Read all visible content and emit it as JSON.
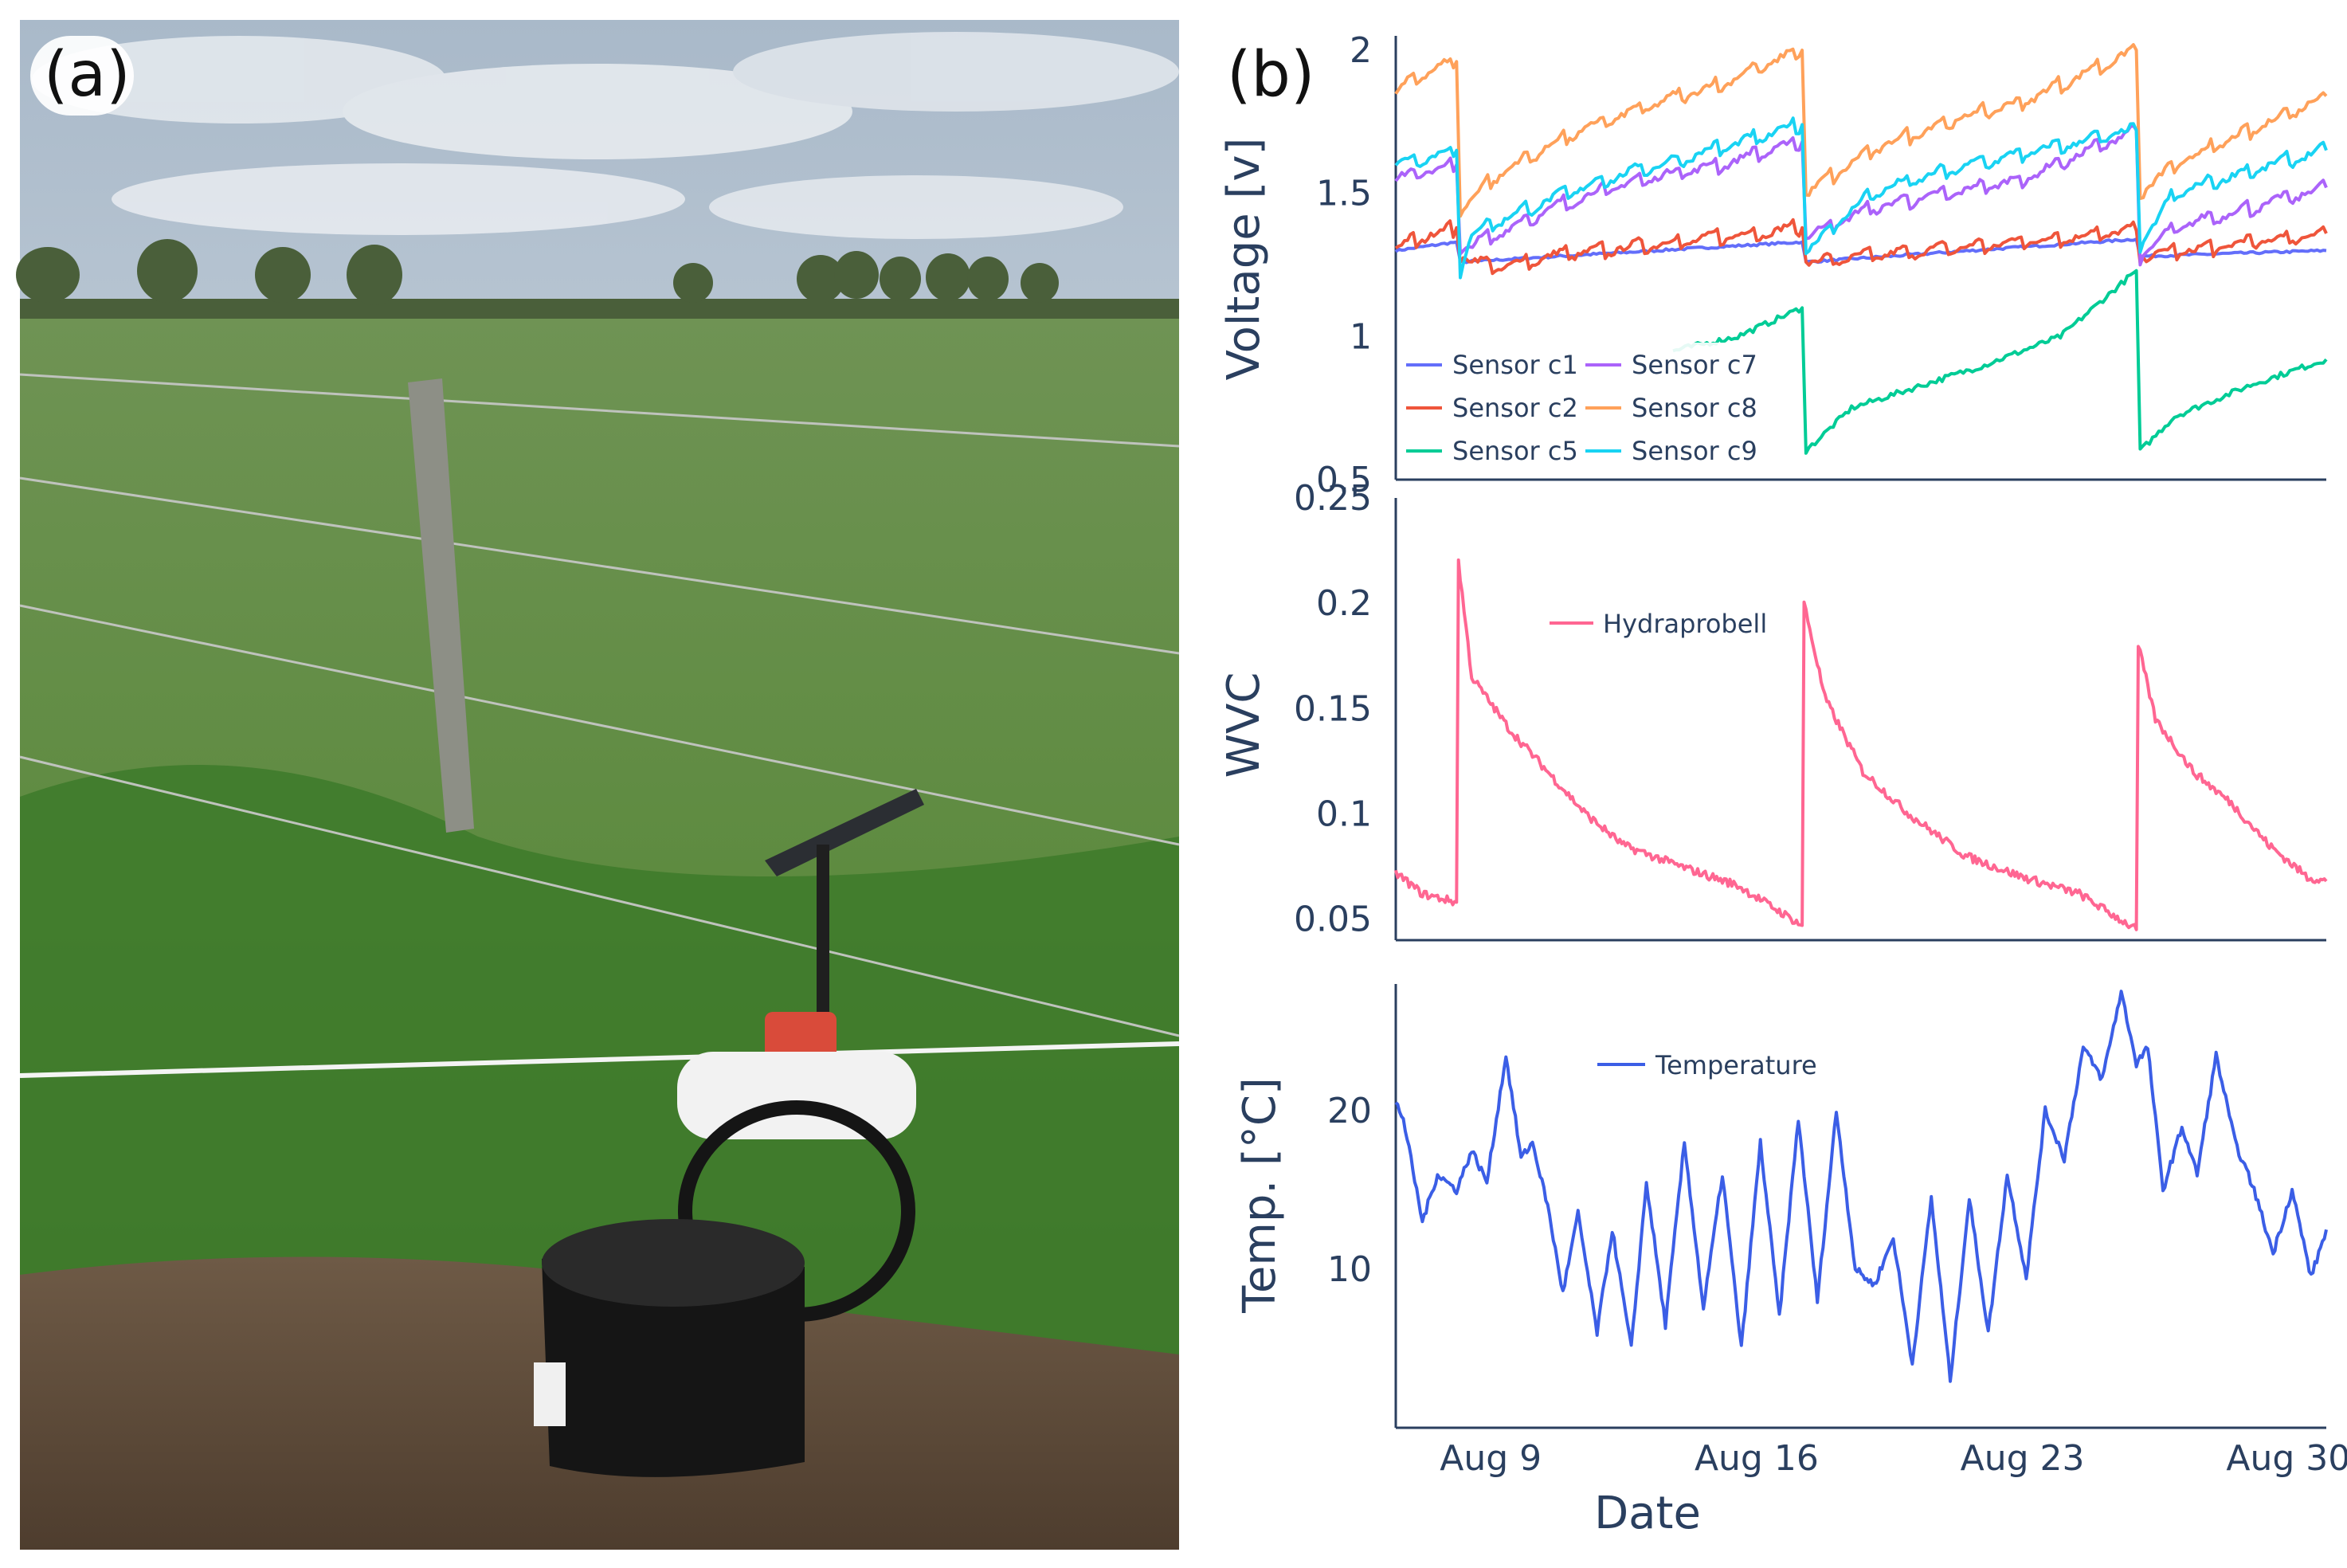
{
  "panel_labels": {
    "a": "(a)",
    "b": "(b)"
  },
  "colors": {
    "c1": "#636efa",
    "c2": "#ef553b",
    "c5": "#00cc96",
    "c7": "#ab63fa",
    "c8": "#ffa15a",
    "c9": "#19d3f3",
    "hydra": "#ff6692",
    "temp": "#3b5ee6",
    "axis": "#2a3f5f"
  },
  "photo": {
    "description_icon": "field-sensor-station-photo"
  },
  "chart_data": [
    {
      "type": "line",
      "ylabel": "Voltage [v]",
      "ylim": [
        0.5,
        2.05
      ],
      "yticks": [
        "0.5",
        "1",
        "1.5",
        "2"
      ],
      "ytick_values": [
        0.5,
        1,
        1.5,
        2
      ],
      "xlim_days": [
        6.5,
        31
      ],
      "series": [
        {
          "name": "Sensor c1",
          "color_key": "c1",
          "segments": [
            [
              [
                6.5,
                1.3
              ],
              [
                8.1,
                1.33
              ],
              [
                8.2,
                1.26
              ],
              [
                17.2,
                1.33
              ],
              [
                17.3,
                1.26
              ],
              [
                26.0,
                1.34
              ],
              [
                26.1,
                1.28
              ],
              [
                31,
                1.3
              ]
            ]
          ]
        },
        {
          "name": "Sensor c2",
          "color_key": "c2",
          "segments": [
            [
              [
                6.5,
                1.31
              ],
              [
                7.5,
                1.36
              ],
              [
                8.1,
                1.38
              ],
              [
                8.2,
                1.28
              ],
              [
                9.2,
                1.24
              ],
              [
                10.5,
                1.28
              ],
              [
                17.2,
                1.38
              ],
              [
                17.3,
                1.26
              ],
              [
                26.0,
                1.37
              ],
              [
                26.1,
                1.28
              ],
              [
                31,
                1.36
              ]
            ]
          ]
        },
        {
          "name": "Sensor c5",
          "color_key": "c5",
          "segments": [
            [
              [
                13.8,
                0.95
              ],
              [
                15.5,
                1.0
              ],
              [
                17.2,
                1.1
              ],
              [
                17.3,
                0.6
              ],
              [
                18.5,
                0.75
              ],
              [
                22,
                0.9
              ],
              [
                24,
                1.0
              ],
              [
                26.0,
                1.23
              ],
              [
                26.1,
                0.6
              ],
              [
                27,
                0.72
              ],
              [
                29,
                0.83
              ],
              [
                31,
                0.92
              ]
            ]
          ]
        },
        {
          "name": "Sensor c7",
          "color_key": "c7",
          "segments": [
            [
              [
                6.5,
                1.55
              ],
              [
                8.1,
                1.6
              ],
              [
                8.2,
                1.3
              ],
              [
                9,
                1.35
              ],
              [
                11,
                1.47
              ],
              [
                13,
                1.55
              ],
              [
                15,
                1.6
              ],
              [
                17.2,
                1.68
              ],
              [
                17.3,
                1.35
              ],
              [
                19,
                1.45
              ],
              [
                21,
                1.5
              ],
              [
                23,
                1.55
              ],
              [
                26.0,
                1.72
              ],
              [
                26.1,
                1.28
              ],
              [
                27,
                1.38
              ],
              [
                29,
                1.45
              ],
              [
                31,
                1.52
              ]
            ]
          ]
        },
        {
          "name": "Sensor c8",
          "color_key": "c8",
          "segments": [
            [
              [
                6.5,
                1.85
              ],
              [
                7.2,
                1.92
              ],
              [
                8.1,
                1.96
              ],
              [
                8.2,
                1.44
              ],
              [
                9,
                1.55
              ],
              [
                11,
                1.7
              ],
              [
                13,
                1.8
              ],
              [
                15,
                1.88
              ],
              [
                17.2,
                2.0
              ],
              [
                17.3,
                1.5
              ],
              [
                19,
                1.65
              ],
              [
                21,
                1.75
              ],
              [
                23,
                1.82
              ],
              [
                26.0,
                2.0
              ],
              [
                26.1,
                1.5
              ],
              [
                27,
                1.6
              ],
              [
                29,
                1.72
              ],
              [
                31,
                1.84
              ]
            ]
          ]
        },
        {
          "name": "Sensor c9",
          "color_key": "c9",
          "segments": [
            [
              [
                6.5,
                1.6
              ],
              [
                8.1,
                1.65
              ],
              [
                8.2,
                1.22
              ],
              [
                8.5,
                1.36
              ],
              [
                10,
                1.45
              ],
              [
                12,
                1.55
              ],
              [
                14,
                1.62
              ],
              [
                17.2,
                1.74
              ],
              [
                17.3,
                1.3
              ],
              [
                19,
                1.5
              ],
              [
                21,
                1.58
              ],
              [
                23,
                1.64
              ],
              [
                26.0,
                1.72
              ],
              [
                26.1,
                1.32
              ],
              [
                27,
                1.5
              ],
              [
                29,
                1.58
              ],
              [
                31,
                1.65
              ]
            ]
          ]
        }
      ],
      "legend": {
        "left": [
          "Sensor c1",
          "Sensor c2",
          "Sensor c5"
        ],
        "right": [
          "Sensor c7",
          "Sensor c8",
          "Sensor c9"
        ]
      }
    },
    {
      "type": "line",
      "ylabel": "WVC",
      "ylim": [
        0.04,
        0.25
      ],
      "yticks": [
        "0.05",
        "0.1",
        "0.15",
        "0.2",
        "0.25"
      ],
      "ytick_values": [
        0.05,
        0.1,
        0.15,
        0.2,
        0.25
      ],
      "series": [
        {
          "name": "Hydraprobell",
          "color_key": "hydra",
          "points": [
            [
              6.5,
              0.072
            ],
            [
              7.2,
              0.062
            ],
            [
              8.1,
              0.058
            ],
            [
              8.15,
              0.22
            ],
            [
              8.5,
              0.165
            ],
            [
              9.5,
              0.14
            ],
            [
              10.5,
              0.12
            ],
            [
              11.5,
              0.1
            ],
            [
              12.5,
              0.085
            ],
            [
              14,
              0.075
            ],
            [
              15.5,
              0.066
            ],
            [
              17.2,
              0.047
            ],
            [
              17.25,
              0.2
            ],
            [
              17.8,
              0.155
            ],
            [
              18.8,
              0.12
            ],
            [
              20,
              0.1
            ],
            [
              21.5,
              0.08
            ],
            [
              23,
              0.07
            ],
            [
              24.5,
              0.062
            ],
            [
              26.0,
              0.045
            ],
            [
              26.05,
              0.18
            ],
            [
              26.5,
              0.145
            ],
            [
              27.5,
              0.12
            ],
            [
              28.5,
              0.105
            ],
            [
              29.5,
              0.085
            ],
            [
              30.5,
              0.07
            ],
            [
              31,
              0.068
            ]
          ]
        }
      ]
    },
    {
      "type": "line",
      "xlabel": "Date",
      "ylabel": "Temp. [°C]",
      "ylim": [
        0,
        28
      ],
      "yticks": [
        "10",
        "20"
      ],
      "ytick_values": [
        10,
        20
      ],
      "xticks": [
        "Aug 9",
        "Aug 16",
        "Aug 23",
        "Aug 30"
      ],
      "xtick_days": [
        9,
        16,
        23,
        30
      ],
      "series": [
        {
          "name": "Temperature",
          "color_key": "temp",
          "points": [
            [
              6.5,
              20.5
            ],
            [
              6.7,
              19.5
            ],
            [
              7.2,
              13
            ],
            [
              7.6,
              16
            ],
            [
              8.1,
              15
            ],
            [
              8.5,
              17.5
            ],
            [
              8.9,
              15.5
            ],
            [
              9.4,
              23.5
            ],
            [
              9.8,
              17
            ],
            [
              10.1,
              18
            ],
            [
              10.5,
              14
            ],
            [
              10.9,
              8.5
            ],
            [
              11.3,
              13.5
            ],
            [
              11.8,
              6
            ],
            [
              12.2,
              12.5
            ],
            [
              12.7,
              5
            ],
            [
              13.1,
              15.5
            ],
            [
              13.6,
              6.5
            ],
            [
              14.1,
              18
            ],
            [
              14.6,
              7.5
            ],
            [
              15.1,
              16
            ],
            [
              15.6,
              5
            ],
            [
              16.1,
              18
            ],
            [
              16.6,
              7
            ],
            [
              17.1,
              19.5
            ],
            [
              17.6,
              8
            ],
            [
              18.1,
              20
            ],
            [
              18.6,
              10
            ],
            [
              19.1,
              9
            ],
            [
              19.6,
              12
            ],
            [
              20.1,
              4
            ],
            [
              20.6,
              14.5
            ],
            [
              21.1,
              3
            ],
            [
              21.6,
              14.5
            ],
            [
              22.1,
              6
            ],
            [
              22.6,
              16
            ],
            [
              23.1,
              9.5
            ],
            [
              23.6,
              20
            ],
            [
              24.1,
              17
            ],
            [
              24.6,
              24
            ],
            [
              25.1,
              22
            ],
            [
              25.6,
              27.5
            ],
            [
              26.0,
              23
            ],
            [
              26.3,
              24
            ],
            [
              26.7,
              15
            ],
            [
              27.2,
              19
            ],
            [
              27.6,
              16
            ],
            [
              28.1,
              23.5
            ],
            [
              28.6,
              18
            ],
            [
              29.1,
              15
            ],
            [
              29.6,
              11
            ],
            [
              30.1,
              15
            ],
            [
              30.6,
              9.5
            ],
            [
              31,
              12.5
            ]
          ]
        }
      ]
    }
  ]
}
